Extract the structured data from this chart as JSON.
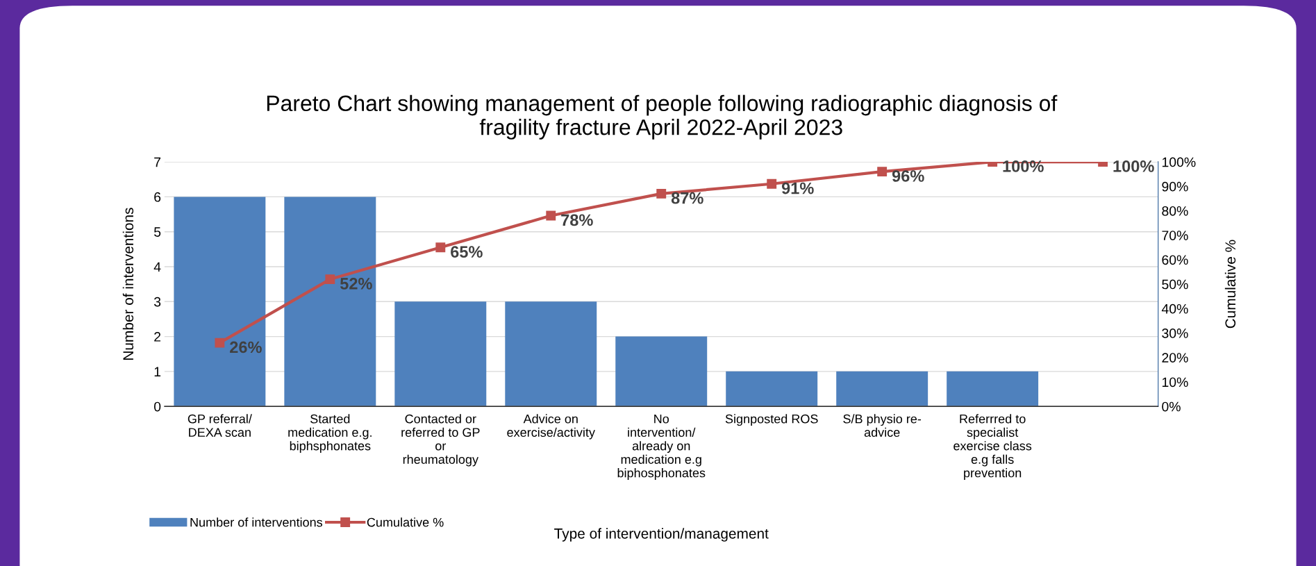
{
  "chart_data": {
    "type": "bar",
    "title": "Pareto Chart showing management of people following radiographic diagnosis of\nfragility fracture April 2022-April 2023",
    "xlabel": "Type of intervention/management",
    "ylabel": "Number of interventions",
    "y2label": "Cumulative %",
    "categories": [
      "GP referral/\nDEXA scan",
      "Started\nmedication e.g.\nbiphsphonates",
      "Contacted or\nreferred to GP\nor\nrheumatology",
      "Advice on\nexercise/activity",
      "No\nintervention/\nalready on\nmedication e.g\nbiphosphonates",
      "Signposted ROS",
      "S/B physio re-\nadvice",
      "Referrred to\nspecialist\nexercise class\ne.g falls\nprevention",
      null
    ],
    "series": [
      {
        "name": "Number of interventions",
        "color": "#4f81bd",
        "values": [
          6,
          6,
          3,
          3,
          2,
          1,
          1,
          1,
          0
        ]
      },
      {
        "name": "Cumulative %",
        "type": "line",
        "axis": "y2",
        "color": "#c0504d",
        "marker": "square",
        "values": [
          26,
          52,
          65,
          78,
          87,
          91,
          96,
          100,
          100
        ],
        "value_labels": [
          "26%",
          "52%",
          "65%",
          "78%",
          "87%",
          "91%",
          "96%",
          "100%",
          "100%"
        ]
      }
    ],
    "ylim": [
      0,
      7
    ],
    "yticks": [
      0,
      1,
      2,
      3,
      4,
      5,
      6,
      7
    ],
    "y2lim": [
      0,
      100
    ],
    "y2ticks": [
      {
        "value": 0,
        "label": "0%"
      },
      {
        "value": 10,
        "label": "10%"
      },
      {
        "value": 20,
        "label": "20%"
      },
      {
        "value": 30,
        "label": "30%"
      },
      {
        "value": 40,
        "label": "40%"
      },
      {
        "value": 50,
        "label": "50%"
      },
      {
        "value": 60,
        "label": "60%"
      },
      {
        "value": 70,
        "label": "70%"
      },
      {
        "value": 80,
        "label": "80%"
      },
      {
        "value": 90,
        "label": "90%"
      },
      {
        "value": 100,
        "label": "100%"
      }
    ],
    "grid": "y",
    "legend": "bottom left"
  }
}
